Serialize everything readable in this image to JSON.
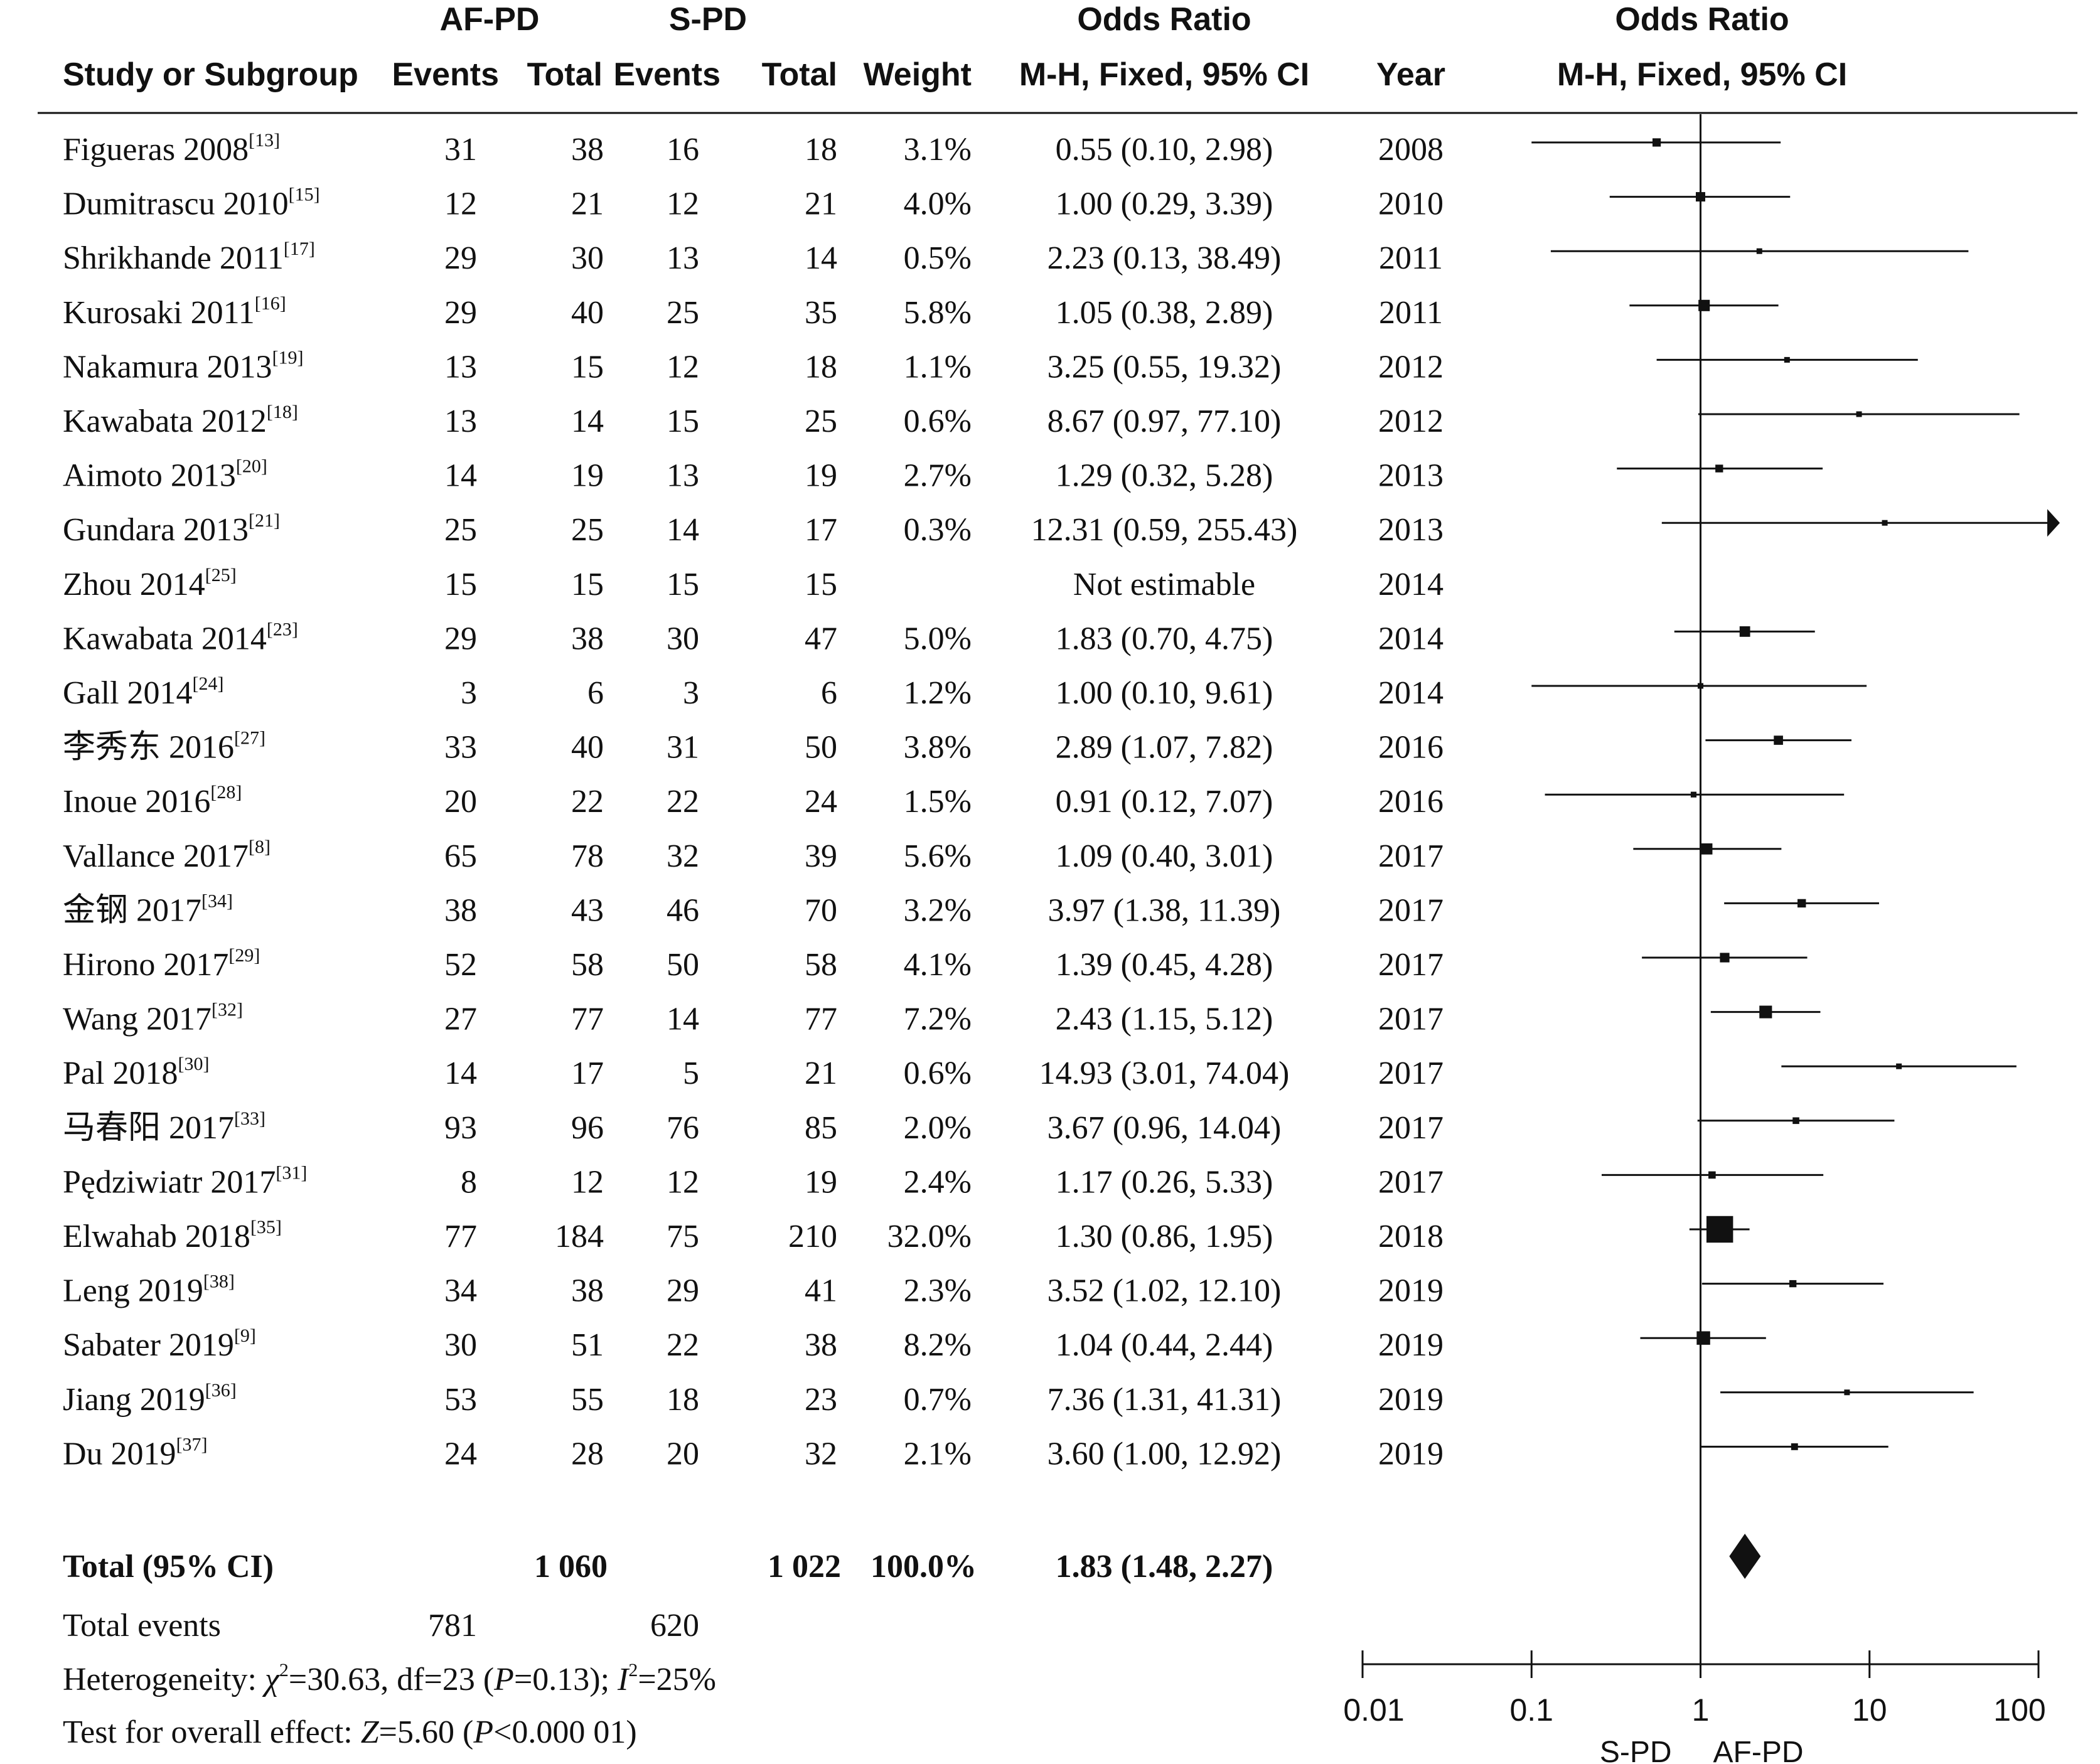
{
  "chart_data": {
    "type": "forest",
    "title": "",
    "group_headers": {
      "experimental": "AF-PD",
      "control": "S-PD",
      "or_table": "Odds Ratio",
      "or_plot": "Odds Ratio"
    },
    "columns": {
      "study": "Study or Subgroup",
      "events_e": "Events",
      "total_e": "Total",
      "events_c": "Events",
      "total_c": "Total",
      "weight": "Weight",
      "ci": "M-H, Fixed, 95% CI",
      "year": "Year",
      "plot_ci": "M-H, Fixed, 95% CI"
    },
    "studies": [
      {
        "name": "Figueras 2008",
        "ref": "[13]",
        "events_e": "31",
        "total_e": "38",
        "events_c": "16",
        "total_c": "18",
        "weight": "3.1%",
        "ci_text": "0.55 (0.10, 2.98)",
        "year": "2008",
        "or": 0.55,
        "lo": 0.1,
        "hi": 2.98,
        "w": 3.1
      },
      {
        "name": "Dumitrascu 2010",
        "ref": "[15]",
        "events_e": "12",
        "total_e": "21",
        "events_c": "12",
        "total_c": "21",
        "weight": "4.0%",
        "ci_text": "1.00 (0.29, 3.39)",
        "year": "2010",
        "or": 1.0,
        "lo": 0.29,
        "hi": 3.39,
        "w": 4.0
      },
      {
        "name": "Shrikhande 2011",
        "ref": "[17]",
        "events_e": "29",
        "total_e": "30",
        "events_c": "13",
        "total_c": "14",
        "weight": "0.5%",
        "ci_text": "2.23 (0.13, 38.49)",
        "year": "2011",
        "or": 2.23,
        "lo": 0.13,
        "hi": 38.49,
        "w": 0.5
      },
      {
        "name": "Kurosaki 2011",
        "ref": "[16]",
        "events_e": "29",
        "total_e": "40",
        "events_c": "25",
        "total_c": "35",
        "weight": "5.8%",
        "ci_text": "1.05 (0.38, 2.89)",
        "year": "2011",
        "or": 1.05,
        "lo": 0.38,
        "hi": 2.89,
        "w": 5.8
      },
      {
        "name": "Nakamura 2013",
        "ref": "[19]",
        "events_e": "13",
        "total_e": "15",
        "events_c": "12",
        "total_c": "18",
        "weight": "1.1%",
        "ci_text": "3.25 (0.55, 19.32)",
        "year": "2012",
        "or": 3.25,
        "lo": 0.55,
        "hi": 19.32,
        "w": 1.1
      },
      {
        "name": "Kawabata 2012",
        "ref": "[18]",
        "events_e": "13",
        "total_e": "14",
        "events_c": "15",
        "total_c": "25",
        "weight": "0.6%",
        "ci_text": "8.67 (0.97, 77.10)",
        "year": "2012",
        "or": 8.67,
        "lo": 0.97,
        "hi": 77.1,
        "w": 0.6
      },
      {
        "name": "Aimoto 2013",
        "ref": "[20]",
        "events_e": "14",
        "total_e": "19",
        "events_c": "13",
        "total_c": "19",
        "weight": "2.7%",
        "ci_text": "1.29 (0.32, 5.28)",
        "year": "2013",
        "or": 1.29,
        "lo": 0.32,
        "hi": 5.28,
        "w": 2.7
      },
      {
        "name": "Gundara 2013",
        "ref": "[21]",
        "events_e": "25",
        "total_e": "25",
        "events_c": "14",
        "total_c": "17",
        "weight": "0.3%",
        "ci_text": "12.31 (0.59, 255.43)",
        "year": "2013",
        "or": 12.31,
        "lo": 0.59,
        "hi": 255.43,
        "w": 0.3
      },
      {
        "name": "Zhou 2014",
        "ref": "[25]",
        "events_e": "15",
        "total_e": "15",
        "events_c": "15",
        "total_c": "15",
        "weight": "",
        "ci_text": "Not estimable",
        "year": "2014",
        "or": null,
        "lo": null,
        "hi": null,
        "w": 0
      },
      {
        "name": "Kawabata 2014",
        "ref": "[23]",
        "events_e": "29",
        "total_e": "38",
        "events_c": "30",
        "total_c": "47",
        "weight": "5.0%",
        "ci_text": "1.83 (0.70, 4.75)",
        "year": "2014",
        "or": 1.83,
        "lo": 0.7,
        "hi": 4.75,
        "w": 5.0
      },
      {
        "name": "Gall 2014",
        "ref": "[24]",
        "events_e": "3",
        "total_e": "6",
        "events_c": "3",
        "total_c": "6",
        "weight": "1.2%",
        "ci_text": "1.00 (0.10, 9.61)",
        "year": "2014",
        "or": 1.0,
        "lo": 0.1,
        "hi": 9.61,
        "w": 1.2
      },
      {
        "name": "李秀东 2016",
        "ref": "[27]",
        "events_e": "33",
        "total_e": "40",
        "events_c": "31",
        "total_c": "50",
        "weight": "3.8%",
        "ci_text": "2.89 (1.07, 7.82)",
        "year": "2016",
        "or": 2.89,
        "lo": 1.07,
        "hi": 7.82,
        "w": 3.8
      },
      {
        "name": "Inoue 2016",
        "ref": "[28]",
        "events_e": "20",
        "total_e": "22",
        "events_c": "22",
        "total_c": "24",
        "weight": "1.5%",
        "ci_text": "0.91 (0.12, 7.07)",
        "year": "2016",
        "or": 0.91,
        "lo": 0.12,
        "hi": 7.07,
        "w": 1.5
      },
      {
        "name": "Vallance 2017",
        "ref": "[8]",
        "events_e": "65",
        "total_e": "78",
        "events_c": "32",
        "total_c": "39",
        "weight": "5.6%",
        "ci_text": "1.09 (0.40, 3.01)",
        "year": "2017",
        "or": 1.09,
        "lo": 0.4,
        "hi": 3.01,
        "w": 5.6
      },
      {
        "name": "金钢 2017",
        "ref": "[34]",
        "events_e": "38",
        "total_e": "43",
        "events_c": "46",
        "total_c": "70",
        "weight": "3.2%",
        "ci_text": "3.97 (1.38, 11.39)",
        "year": "2017",
        "or": 3.97,
        "lo": 1.38,
        "hi": 11.39,
        "w": 3.2
      },
      {
        "name": "Hirono 2017",
        "ref": "[29]",
        "events_e": "52",
        "total_e": "58",
        "events_c": "50",
        "total_c": "58",
        "weight": "4.1%",
        "ci_text": "1.39 (0.45, 4.28)",
        "year": "2017",
        "or": 1.39,
        "lo": 0.45,
        "hi": 4.28,
        "w": 4.1
      },
      {
        "name": "Wang 2017",
        "ref": "[32]",
        "events_e": "27",
        "total_e": "77",
        "events_c": "14",
        "total_c": "77",
        "weight": "7.2%",
        "ci_text": "2.43 (1.15, 5.12)",
        "year": "2017",
        "or": 2.43,
        "lo": 1.15,
        "hi": 5.12,
        "w": 7.2
      },
      {
        "name": "Pal 2018",
        "ref": "[30]",
        "events_e": "14",
        "total_e": "17",
        "events_c": "5",
        "total_c": "21",
        "weight": "0.6%",
        "ci_text": "14.93 (3.01, 74.04)",
        "year": "2017",
        "or": 14.93,
        "lo": 3.01,
        "hi": 74.04,
        "w": 0.6
      },
      {
        "name": "马春阳 2017",
        "ref": "[33]",
        "events_e": "93",
        "total_e": "96",
        "events_c": "76",
        "total_c": "85",
        "weight": "2.0%",
        "ci_text": "3.67 (0.96, 14.04)",
        "year": "2017",
        "or": 3.67,
        "lo": 0.96,
        "hi": 14.04,
        "w": 2.0
      },
      {
        "name": "Pędziwiatr 2017",
        "ref": "[31]",
        "events_e": "8",
        "total_e": "12",
        "events_c": "12",
        "total_c": "19",
        "weight": "2.4%",
        "ci_text": "1.17 (0.26, 5.33)",
        "year": "2017",
        "or": 1.17,
        "lo": 0.26,
        "hi": 5.33,
        "w": 2.4
      },
      {
        "name": "Elwahab 2018",
        "ref": "[35]",
        "events_e": "77",
        "total_e": "184",
        "events_c": "75",
        "total_c": "210",
        "weight": "32.0%",
        "ci_text": "1.30 (0.86, 1.95)",
        "year": "2018",
        "or": 1.3,
        "lo": 0.86,
        "hi": 1.95,
        "w": 32.0
      },
      {
        "name": "Leng 2019",
        "ref": "[38]",
        "events_e": "34",
        "total_e": "38",
        "events_c": "29",
        "total_c": "41",
        "weight": "2.3%",
        "ci_text": "3.52 (1.02, 12.10)",
        "year": "2019",
        "or": 3.52,
        "lo": 1.02,
        "hi": 12.1,
        "w": 2.3
      },
      {
        "name": "Sabater 2019",
        "ref": "[9]",
        "events_e": "30",
        "total_e": "51",
        "events_c": "22",
        "total_c": "38",
        "weight": "8.2%",
        "ci_text": "1.04 (0.44, 2.44)",
        "year": "2019",
        "or": 1.04,
        "lo": 0.44,
        "hi": 2.44,
        "w": 8.2
      },
      {
        "name": "Jiang 2019",
        "ref": "[36]",
        "events_e": "53",
        "total_e": "55",
        "events_c": "18",
        "total_c": "23",
        "weight": "0.7%",
        "ci_text": "7.36 (1.31, 41.31)",
        "year": "2019",
        "or": 7.36,
        "lo": 1.31,
        "hi": 41.31,
        "w": 0.7
      },
      {
        "name": "Du 2019",
        "ref": "[37]",
        "events_e": "24",
        "total_e": "28",
        "events_c": "20",
        "total_c": "32",
        "weight": "2.1%",
        "ci_text": "3.60 (1.00, 12.92)",
        "year": "2019",
        "or": 3.6,
        "lo": 1.0,
        "hi": 12.92,
        "w": 2.1
      }
    ],
    "total": {
      "label": "Total (95% CI)",
      "total_e": "1 060",
      "total_c": "1 022",
      "weight": "100.0%",
      "ci_text": "1.83 (1.48, 2.27)",
      "or": 1.83,
      "lo": 1.48,
      "hi": 2.27
    },
    "total_events": {
      "label": "Total events",
      "events_e": "781",
      "events_c": "620"
    },
    "heterogeneity": {
      "label": "Heterogeneity: ",
      "chi_sym": "χ",
      "chi_exp": "2",
      "chi_val": "=30.63, df=23 (",
      "p_sym": "P",
      "p_val": "=0.13); ",
      "i_sym": "I",
      "i_exp": "2",
      "i_val": "=25%"
    },
    "overall": {
      "label": "Test for overall effect: ",
      "z_sym": "Z",
      "z_val": "=5.60 (",
      "p_sym": "P",
      "p_val": "<0.000 01)"
    },
    "x_axis": {
      "scale": "log",
      "ticks": [
        0.01,
        0.1,
        1,
        10,
        100
      ],
      "tick_labels": [
        "0.01",
        "0.1",
        "1",
        "10",
        "100"
      ],
      "range": [
        0.01,
        100
      ]
    },
    "favours": {
      "left": "S-PD",
      "right": "AF-PD"
    }
  }
}
